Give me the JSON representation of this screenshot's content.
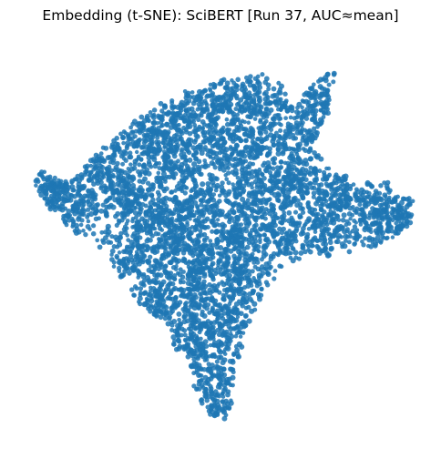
{
  "chart_data": {
    "type": "scatter",
    "title": "Embedding (t-SNE): SciBERT [Run 37, AUC≈mean]",
    "xlabel": "",
    "ylabel": "",
    "axes_visible": false,
    "grid": false,
    "legend": "none",
    "marker_color": "#1f77b4",
    "marker_alpha": 0.85,
    "marker_shape": "circle",
    "approx_point_count": 5000,
    "point_cloud_outline": [
      [
        -0.95,
        0.38
      ],
      [
        -0.78,
        0.3
      ],
      [
        -0.55,
        0.55
      ],
      [
        -0.38,
        0.68
      ],
      [
        -0.22,
        0.78
      ],
      [
        0.0,
        0.85
      ],
      [
        0.22,
        0.88
      ],
      [
        0.27,
        0.82
      ],
      [
        0.3,
        0.86
      ],
      [
        0.38,
        0.68
      ],
      [
        0.45,
        0.8
      ],
      [
        0.6,
        0.92
      ],
      [
        0.56,
        0.68
      ],
      [
        0.48,
        0.48
      ],
      [
        0.55,
        0.4
      ],
      [
        0.7,
        0.3
      ],
      [
        0.88,
        0.3
      ],
      [
        1.0,
        0.2
      ],
      [
        0.98,
        0.05
      ],
      [
        0.78,
        -0.05
      ],
      [
        0.55,
        -0.1
      ],
      [
        0.38,
        -0.12
      ],
      [
        0.22,
        -0.28
      ],
      [
        0.12,
        -0.55
      ],
      [
        0.08,
        -0.8
      ],
      [
        0.02,
        -1.0
      ],
      [
        -0.08,
        -0.92
      ],
      [
        -0.2,
        -0.65
      ],
      [
        -0.3,
        -0.45
      ],
      [
        -0.48,
        -0.3
      ],
      [
        -0.62,
        -0.05
      ],
      [
        -0.78,
        0.05
      ],
      [
        -0.9,
        0.18
      ],
      [
        -0.98,
        0.32
      ]
    ],
    "dense_clusters": [
      [
        -0.9,
        0.28
      ],
      [
        -0.78,
        0.18
      ],
      [
        -0.6,
        0.35
      ],
      [
        -0.4,
        0.55
      ],
      [
        -0.2,
        0.65
      ],
      [
        0.0,
        0.7
      ],
      [
        0.2,
        0.75
      ],
      [
        0.5,
        0.75
      ],
      [
        0.45,
        0.55
      ],
      [
        0.2,
        0.5
      ],
      [
        0.0,
        0.45
      ],
      [
        -0.25,
        0.4
      ],
      [
        -0.45,
        0.2
      ],
      [
        -0.3,
        0.1
      ],
      [
        -0.1,
        0.2
      ],
      [
        0.15,
        0.25
      ],
      [
        0.35,
        0.3
      ],
      [
        0.6,
        0.25
      ],
      [
        0.8,
        0.15
      ],
      [
        0.9,
        0.1
      ],
      [
        0.55,
        0.05
      ],
      [
        0.3,
        0.05
      ],
      [
        0.05,
        0.0
      ],
      [
        -0.2,
        -0.05
      ],
      [
        -0.45,
        -0.1
      ],
      [
        -0.3,
        -0.3
      ],
      [
        -0.1,
        -0.25
      ],
      [
        0.1,
        -0.2
      ],
      [
        -0.15,
        -0.5
      ],
      [
        0.05,
        -0.45
      ],
      [
        -0.05,
        -0.7
      ],
      [
        0.02,
        -0.9
      ]
    ]
  }
}
